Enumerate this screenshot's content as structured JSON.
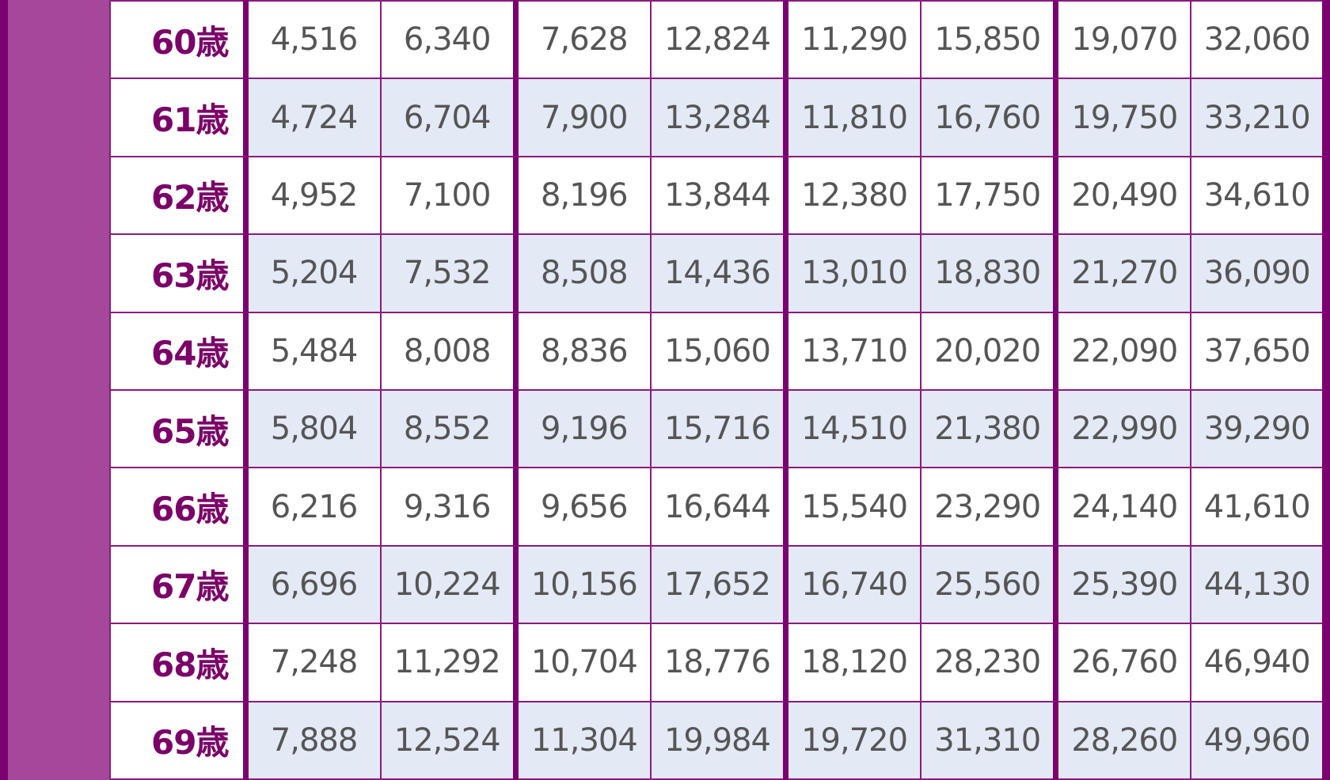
{
  "colors": {
    "border": "#7d0070",
    "band": "#a5479a",
    "shade": "#e3e9f5",
    "label_text": "#7b0068",
    "value_text": "#555555"
  },
  "rows": [
    {
      "age": "60歳",
      "values": [
        "4,516",
        "6,340",
        "7,628",
        "12,824",
        "11,290",
        "15,850",
        "19,070",
        "32,060"
      ]
    },
    {
      "age": "61歳",
      "values": [
        "4,724",
        "6,704",
        "7,900",
        "13,284",
        "11,810",
        "16,760",
        "19,750",
        "33,210"
      ]
    },
    {
      "age": "62歳",
      "values": [
        "4,952",
        "7,100",
        "8,196",
        "13,844",
        "12,380",
        "17,750",
        "20,490",
        "34,610"
      ]
    },
    {
      "age": "63歳",
      "values": [
        "5,204",
        "7,532",
        "8,508",
        "14,436",
        "13,010",
        "18,830",
        "21,270",
        "36,090"
      ]
    },
    {
      "age": "64歳",
      "values": [
        "5,484",
        "8,008",
        "8,836",
        "15,060",
        "13,710",
        "20,020",
        "22,090",
        "37,650"
      ]
    },
    {
      "age": "65歳",
      "values": [
        "5,804",
        "8,552",
        "9,196",
        "15,716",
        "14,510",
        "21,380",
        "22,990",
        "39,290"
      ]
    },
    {
      "age": "66歳",
      "values": [
        "6,216",
        "9,316",
        "9,656",
        "16,644",
        "15,540",
        "23,290",
        "24,140",
        "41,610"
      ]
    },
    {
      "age": "67歳",
      "values": [
        "6,696",
        "10,224",
        "10,156",
        "17,652",
        "16,740",
        "25,560",
        "25,390",
        "44,130"
      ]
    },
    {
      "age": "68歳",
      "values": [
        "7,248",
        "11,292",
        "10,704",
        "18,776",
        "18,120",
        "28,230",
        "26,760",
        "46,940"
      ]
    },
    {
      "age": "69歳",
      "values": [
        "7,888",
        "12,524",
        "11,304",
        "19,984",
        "19,720",
        "31,310",
        "28,260",
        "49,960"
      ]
    }
  ]
}
